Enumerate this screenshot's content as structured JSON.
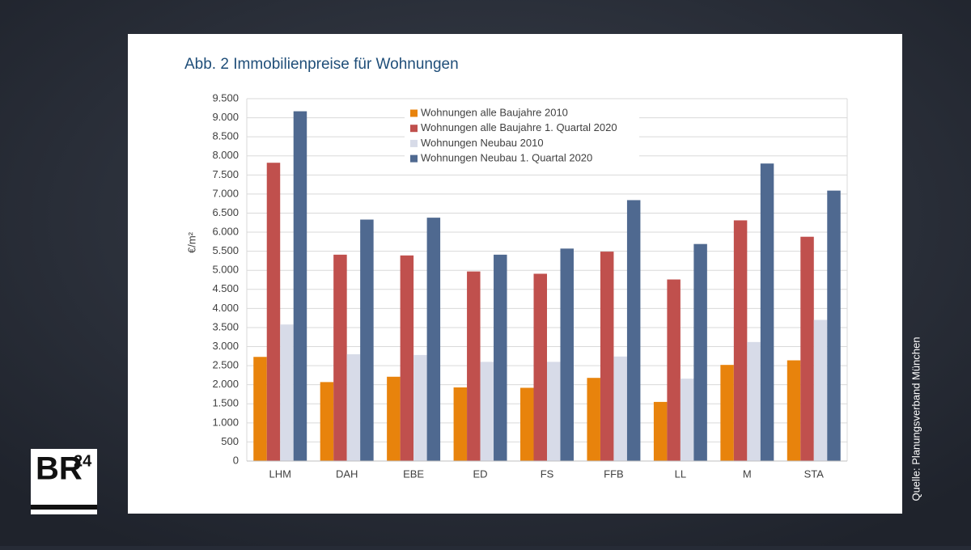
{
  "chart_data": {
    "type": "bar",
    "title": "Abb. 2 Immobilienpreise für Wohnungen",
    "ylabel": "€/m²",
    "categories": [
      "LHM",
      "DAH",
      "EBE",
      "ED",
      "FS",
      "FFB",
      "LL",
      "M",
      "STA"
    ],
    "series": [
      {
        "name": "Wohnungen alle Baujahre 2010",
        "color": "#e8830c",
        "values": [
          2730,
          2070,
          2210,
          1930,
          1920,
          2180,
          1550,
          2520,
          2640
        ]
      },
      {
        "name": "Wohnungen alle Baujahre 1. Quartal 2020",
        "color": "#c0504d",
        "values": [
          7820,
          5410,
          5390,
          4970,
          4910,
          5490,
          4760,
          6310,
          5880
        ]
      },
      {
        "name": "Wohnungen Neubau 2010",
        "color": "#d7dbe8",
        "values": [
          3580,
          2800,
          2780,
          2600,
          2600,
          2740,
          2160,
          3120,
          3700
        ]
      },
      {
        "name": "Wohnungen Neubau 1. Quartal 2020",
        "color": "#4f6990",
        "values": [
          9170,
          6330,
          6380,
          5410,
          5570,
          6840,
          5690,
          7800,
          7090
        ]
      }
    ],
    "ylim": [
      0,
      9500
    ],
    "yticks": [
      0,
      500,
      {
        "value": 1000,
        "label": "1.000"
      },
      {
        "value": 1500,
        "label": "1.500"
      },
      {
        "value": 2000,
        "label": "2.000"
      },
      {
        "value": 2500,
        "label": "2.500"
      },
      {
        "value": 3000,
        "label": "3.000"
      },
      {
        "value": 3500,
        "label": "3.500"
      },
      {
        "value": 4000,
        "label": "4.000"
      },
      {
        "value": 4500,
        "label": "4.500"
      },
      {
        "value": 5000,
        "label": "5.000"
      },
      {
        "value": 5500,
        "label": "5.500"
      },
      {
        "value": 6000,
        "label": "6.000"
      },
      {
        "value": 6500,
        "label": "6.500"
      },
      {
        "value": 7000,
        "label": "7.000"
      },
      {
        "value": 7500,
        "label": "7.500"
      },
      {
        "value": 8000,
        "label": "8.000"
      },
      {
        "value": 8500,
        "label": "8.500"
      },
      {
        "value": 9000,
        "label": "9.000"
      },
      {
        "value": 9500,
        "label": "9.500"
      }
    ],
    "grid": true,
    "legend": "top"
  },
  "source": "Quelle: Planungsverband München",
  "logo": {
    "text": "BR",
    "superscript": "24"
  }
}
